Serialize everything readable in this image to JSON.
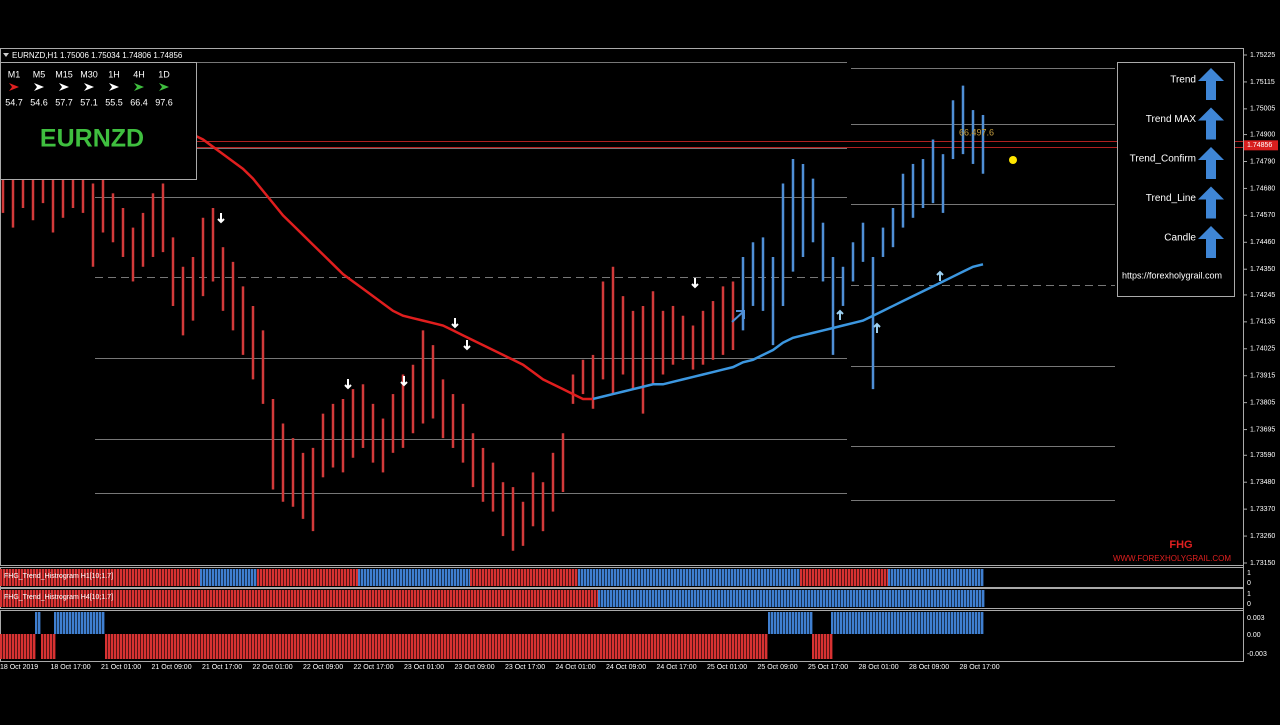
{
  "header": {
    "symbol_line": "EURNZD,H1  1.75006 1.75034 1.74806 1.74856"
  },
  "timeframe_panel": {
    "timeframes": [
      "M1",
      "M5",
      "M15",
      "M30",
      "1H",
      "4H",
      "1D"
    ],
    "values": [
      "54.7",
      "54.6",
      "57.7",
      "57.1",
      "55.5",
      "66.4",
      "97.6"
    ],
    "symbol": "EURNZD"
  },
  "signal_panel": {
    "items": [
      "Trend",
      "Trend MAX",
      "Trend_Confirm",
      "Trend_Line",
      "Candle"
    ],
    "url": "https://forexholygrail.com"
  },
  "price_chart": {
    "price_ticks": [
      {
        "value": 1.75225,
        "label": "1.75225"
      },
      {
        "value": 1.75115,
        "label": "1.75115"
      },
      {
        "value": 1.75005,
        "label": "1.75005"
      },
      {
        "value": 1.749,
        "label": "1.74900"
      },
      {
        "value": 1.7479,
        "label": "1.74790"
      },
      {
        "value": 1.7468,
        "label": "1.74680"
      },
      {
        "value": 1.7457,
        "label": "1.74570"
      },
      {
        "value": 1.7446,
        "label": "1.74460"
      },
      {
        "value": 1.7435,
        "label": "1.74350"
      },
      {
        "value": 1.74245,
        "label": "1.74245"
      },
      {
        "value": 1.74135,
        "label": "1.74135"
      },
      {
        "value": 1.74025,
        "label": "1.74025"
      },
      {
        "value": 1.73915,
        "label": "1.73915"
      },
      {
        "value": 1.73805,
        "label": "1.73805"
      },
      {
        "value": 1.73695,
        "label": "1.73695"
      },
      {
        "value": 1.7359,
        "label": "1.73590"
      },
      {
        "value": 1.7348,
        "label": "1.73480"
      },
      {
        "value": 1.7337,
        "label": "1.73370"
      },
      {
        "value": 1.7326,
        "label": "1.73260"
      },
      {
        "value": 1.7315,
        "label": "1.73150"
      }
    ],
    "current_price": {
      "value": 1.74856,
      "label": "1.74856"
    },
    "annotation": "66.497.6",
    "bar_series": [
      {
        "color": "#d23a3a",
        "lows": [
          1.7458,
          1.7452,
          1.746,
          1.7455,
          1.7462,
          1.745,
          1.7456,
          1.746,
          1.7458,
          1.7436,
          1.745,
          1.7446,
          1.744,
          1.743,
          1.7436,
          1.744,
          1.7442,
          1.742,
          1.7408,
          1.7414,
          1.7424,
          1.743,
          1.7418,
          1.741,
          1.74,
          1.739,
          1.738,
          1.7345,
          1.734,
          1.7338,
          1.7333,
          1.7328,
          1.735,
          1.7354,
          1.7352,
          1.7358,
          1.7362,
          1.7356,
          1.7352,
          1.736,
          1.7362,
          1.7368,
          1.7372,
          1.7374,
          1.7366,
          1.7362,
          1.7356,
          1.7346,
          1.734,
          1.7336,
          1.7326,
          1.732,
          1.7322,
          1.733,
          1.7328,
          1.7336,
          1.7344,
          1.738,
          1.7384,
          1.7378,
          1.739,
          1.7384,
          1.7392,
          1.7386,
          1.7376,
          1.7388,
          1.7392,
          1.7396,
          1.7398,
          1.7394,
          1.7396,
          1.7398,
          1.74,
          1.7402
        ],
        "highs": [
          1.748,
          1.7476,
          1.7484,
          1.7478,
          1.7486,
          1.7474,
          1.7482,
          1.748,
          1.7484,
          1.747,
          1.7472,
          1.7466,
          1.746,
          1.7452,
          1.7458,
          1.7466,
          1.747,
          1.7448,
          1.7436,
          1.744,
          1.7456,
          1.746,
          1.7444,
          1.7438,
          1.7428,
          1.742,
          1.741,
          1.7382,
          1.7372,
          1.7366,
          1.736,
          1.7362,
          1.7376,
          1.738,
          1.7382,
          1.7386,
          1.7388,
          1.738,
          1.7374,
          1.7384,
          1.7392,
          1.7396,
          1.741,
          1.7404,
          1.739,
          1.7384,
          1.738,
          1.7368,
          1.7362,
          1.7356,
          1.7348,
          1.7346,
          1.734,
          1.7352,
          1.7348,
          1.736,
          1.7368,
          1.7392,
          1.7398,
          1.74,
          1.743,
          1.7436,
          1.7424,
          1.7418,
          1.742,
          1.7426,
          1.7418,
          1.742,
          1.7416,
          1.7412,
          1.7418,
          1.7422,
          1.7428,
          1.743
        ]
      },
      {
        "color": "#4f8fd6",
        "lows": [
          1.741,
          1.742,
          1.7418,
          1.7404,
          1.742,
          1.7434,
          1.744,
          1.7446,
          1.743,
          1.74,
          1.742,
          1.743,
          1.7438,
          1.7386,
          1.744,
          1.7444,
          1.7452,
          1.7456,
          1.746,
          1.7462,
          1.7458,
          1.748,
          1.7482,
          1.7478,
          1.7474
        ],
        "highs": [
          1.744,
          1.7446,
          1.7448,
          1.744,
          1.747,
          1.748,
          1.7478,
          1.7472,
          1.7454,
          1.744,
          1.7436,
          1.7446,
          1.7454,
          1.744,
          1.7452,
          1.746,
          1.7474,
          1.7478,
          1.748,
          1.7488,
          1.7482,
          1.7504,
          1.751,
          1.75,
          1.7498
        ]
      }
    ],
    "ma_lines": [
      {
        "color": "#e01e1e",
        "values": [
          null,
          null,
          null,
          null,
          null,
          null,
          null,
          null,
          null,
          null,
          null,
          null,
          null,
          null,
          null,
          null,
          null,
          null,
          null,
          1.749,
          1.7488,
          1.7485,
          1.7482,
          1.7479,
          1.7476,
          1.7472,
          1.7467,
          1.7462,
          1.7457,
          1.7453,
          1.7449,
          1.7445,
          1.7441,
          1.7437,
          1.7433,
          1.743,
          1.7427,
          1.7424,
          1.7421,
          1.7418,
          1.7416,
          1.7415,
          1.7414,
          1.7413,
          1.7412,
          1.741,
          1.7408,
          1.7406,
          1.7404,
          1.7402,
          1.74,
          1.7398,
          1.7396,
          1.7393,
          1.739,
          1.7388,
          1.7386,
          1.7384,
          1.7382,
          1.7382,
          null,
          null,
          null,
          null,
          null,
          null,
          null,
          null,
          null,
          null,
          null,
          null,
          null,
          null,
          null,
          null,
          null,
          null,
          null,
          null,
          null,
          null,
          null,
          null,
          null,
          null,
          null,
          null,
          null,
          null,
          null,
          null,
          null,
          null,
          null,
          null,
          null,
          null,
          null
        ]
      },
      {
        "color": "#3c97e0",
        "values": [
          null,
          null,
          null,
          null,
          null,
          null,
          null,
          null,
          null,
          null,
          null,
          null,
          null,
          null,
          null,
          null,
          null,
          null,
          null,
          null,
          null,
          null,
          null,
          null,
          null,
          null,
          null,
          null,
          null,
          null,
          null,
          null,
          null,
          null,
          null,
          null,
          null,
          null,
          null,
          null,
          null,
          null,
          null,
          null,
          null,
          null,
          null,
          null,
          null,
          null,
          null,
          null,
          null,
          null,
          null,
          null,
          null,
          null,
          null,
          1.7382,
          1.7383,
          1.7384,
          1.7385,
          1.7386,
          1.7387,
          1.7388,
          1.7388,
          1.7389,
          1.739,
          1.7391,
          1.7392,
          1.7393,
          1.7394,
          1.7395,
          1.7397,
          1.7398,
          1.74,
          1.7402,
          1.7405,
          1.7407,
          1.7408,
          1.7409,
          1.741,
          1.7411,
          1.7412,
          1.7413,
          1.7414,
          1.7416,
          1.7418,
          1.742,
          1.7422,
          1.7424,
          1.7426,
          1.7428,
          1.743,
          1.7432,
          1.7434,
          1.7436,
          1.7437
        ]
      }
    ]
  },
  "indicators": [
    {
      "label": "FHG_Trend_Histrogram H1[10;1.7]",
      "scale": [
        "1",
        "0"
      ]
    },
    {
      "label": "FHG_Trend_Histrogram H4[10;1.7]",
      "scale": [
        "1",
        "0"
      ]
    },
    {
      "scale": [
        "0.003",
        "0.00",
        "-0.003"
      ]
    }
  ],
  "time_axis": [
    "18 Oct 2019",
    "18 Oct 17:00",
    "21 Oct 01:00",
    "21 Oct 09:00",
    "21 Oct 17:00",
    "22 Oct 01:00",
    "22 Oct 09:00",
    "22 Oct 17:00",
    "23 Oct 01:00",
    "23 Oct 09:00",
    "23 Oct 17:00",
    "24 Oct 01:00",
    "24 Oct 09:00",
    "24 Oct 17:00",
    "25 Oct 01:00",
    "25 Oct 09:00",
    "25 Oct 17:00",
    "28 Oct 01:00",
    "28 Oct 09:00",
    "28 Oct 17:00"
  ],
  "watermark": {
    "logo": "FHG",
    "site": "WWW.FOREXHOLYGRAIL.COM"
  }
}
